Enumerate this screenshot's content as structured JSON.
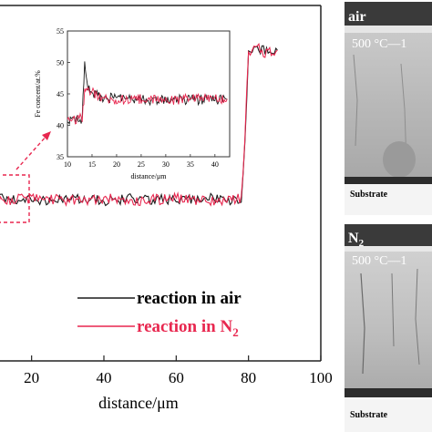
{
  "chart_data": {
    "type": "line",
    "xlabel": "distance/μm",
    "x_ticks": [
      "20",
      "40",
      "60",
      "80",
      "100"
    ],
    "xlim": [
      10,
      100
    ],
    "series": [
      {
        "name": "reaction in air",
        "color": "#1a1a1a",
        "points": [
          [
            10,
            44.6
          ],
          [
            20,
            44.5
          ],
          [
            30,
            44.6
          ],
          [
            40,
            44.5
          ],
          [
            50,
            44.6
          ],
          [
            60,
            44.5
          ],
          [
            70,
            44.6
          ],
          [
            78,
            44.5
          ],
          [
            79,
            47.5
          ],
          [
            80,
            52.0
          ],
          [
            82,
            52.4
          ],
          [
            85,
            52.2
          ],
          [
            88,
            52.3
          ]
        ]
      },
      {
        "name": "reaction in N",
        "name_subscript": "2",
        "color": "#e8274f",
        "points": [
          [
            10,
            44.5
          ],
          [
            20,
            44.6
          ],
          [
            30,
            44.5
          ],
          [
            40,
            44.6
          ],
          [
            50,
            44.5
          ],
          [
            60,
            44.6
          ],
          [
            70,
            44.5
          ],
          [
            78,
            44.6
          ],
          [
            79,
            47.8
          ],
          [
            80,
            52.2
          ],
          [
            82,
            52.5
          ],
          [
            85,
            52.1
          ],
          [
            88,
            52.3
          ]
        ]
      }
    ],
    "inset": {
      "ylabel": "Fe concent/at.%",
      "xlabel": "distance/μm",
      "xlim": [
        10,
        43
      ],
      "ylim": [
        35,
        55
      ],
      "x_ticks": [
        "10",
        "15",
        "20",
        "25",
        "30",
        "35",
        "40"
      ],
      "y_ticks": [
        "35",
        "40",
        "45",
        "50",
        "55"
      ],
      "series": [
        {
          "name": "reaction in air",
          "color": "#1a1a1a",
          "points": [
            [
              10,
              40.5
            ],
            [
              12,
              40.8
            ],
            [
              13,
              41.0
            ],
            [
              13.5,
              50.5
            ],
            [
              14,
              46.5
            ],
            [
              15,
              45.0
            ],
            [
              17,
              44.5
            ],
            [
              20,
              44.2
            ],
            [
              25,
              44.1
            ],
            [
              30,
              44.0
            ],
            [
              35,
              44.1
            ],
            [
              40,
              44.0
            ],
            [
              42.5,
              44.1
            ]
          ]
        },
        {
          "name": "reaction in N2",
          "color": "#e8274f",
          "points": [
            [
              10,
              40.6
            ],
            [
              12,
              40.9
            ],
            [
              13,
              41.2
            ],
            [
              13.5,
              45.5
            ],
            [
              14,
              45.8
            ],
            [
              15,
              45.2
            ],
            [
              17,
              44.5
            ],
            [
              20,
              44.0
            ],
            [
              25,
              44.2
            ],
            [
              30,
              44.0
            ],
            [
              35,
              44.2
            ],
            [
              40,
              44.1
            ],
            [
              42.5,
              44.2
            ]
          ]
        }
      ]
    }
  },
  "micrographs": [
    {
      "label": "air",
      "temp_label": "500 °C—1",
      "substrate_label": "Substrate"
    },
    {
      "label": "N",
      "label_subscript": "2",
      "temp_label": "500 °C—1",
      "substrate_label": "Substrate"
    }
  ],
  "colors": {
    "air": "#1a1a1a",
    "n2": "#e8274f",
    "dashed_box": "#e8274f"
  }
}
